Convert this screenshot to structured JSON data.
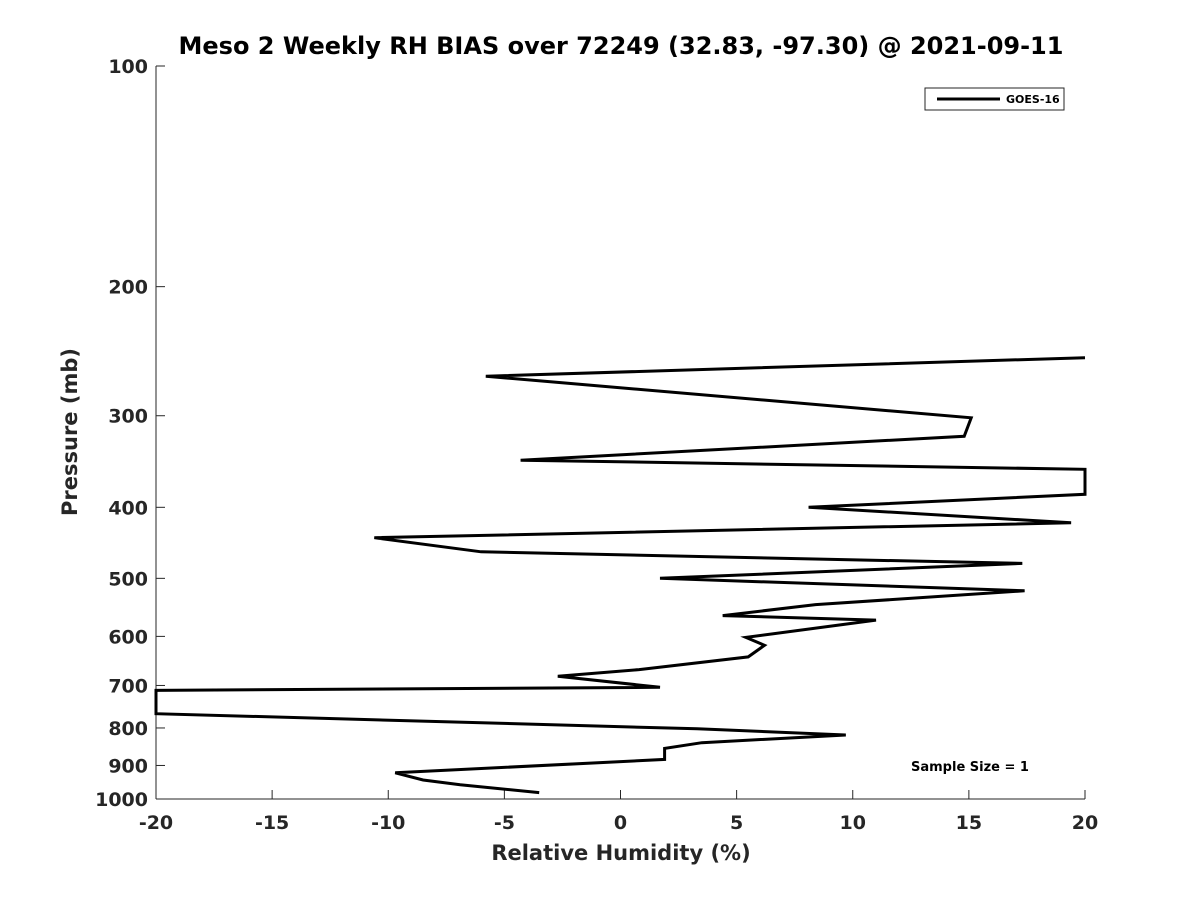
{
  "chart_data": {
    "type": "line",
    "title": "Meso 2 Weekly RH BIAS over 72249 (32.83, -97.30) @ 2021-09-11",
    "xlabel": "Relative Humidity (%)",
    "ylabel": "Pressure (mb)",
    "xlim": [
      -20,
      20
    ],
    "ylim": [
      100,
      1000
    ],
    "y_scale": "log",
    "y_reversed": true,
    "x_ticks": [
      -20,
      -15,
      -10,
      -5,
      0,
      5,
      10,
      15,
      20
    ],
    "x_tick_labels": [
      "-20",
      "-15",
      "-10",
      "-5",
      "0",
      "5",
      "10",
      "15",
      "20"
    ],
    "y_ticks": [
      100,
      200,
      300,
      400,
      500,
      600,
      700,
      800,
      900,
      1000
    ],
    "y_tick_labels": [
      "100",
      "200",
      "300",
      "400",
      "500",
      "600",
      "700",
      "800",
      "900",
      "1000"
    ],
    "grid": false,
    "legend_position": "top-right",
    "series": [
      {
        "name": "GOES-16",
        "color": "#000000",
        "points": [
          [
            20.0,
            250
          ],
          [
            -5.8,
            265
          ],
          [
            15.1,
            302
          ],
          [
            14.8,
            320
          ],
          [
            -4.3,
            345
          ],
          [
            20.0,
            355
          ],
          [
            20.0,
            384
          ],
          [
            8.1,
            400
          ],
          [
            19.4,
            420
          ],
          [
            -10.6,
            440
          ],
          [
            -6.0,
            460
          ],
          [
            17.3,
            477
          ],
          [
            1.7,
            500
          ],
          [
            17.4,
            520
          ],
          [
            8.4,
            543
          ],
          [
            4.4,
            562
          ],
          [
            11.0,
            570
          ],
          [
            5.4,
            602
          ],
          [
            6.2,
            617
          ],
          [
            5.5,
            640
          ],
          [
            0.8,
            666
          ],
          [
            -2.7,
            680
          ],
          [
            1.7,
            704
          ],
          [
            -20.0,
            711
          ],
          [
            -20.0,
            765
          ],
          [
            3.3,
            802
          ],
          [
            9.7,
            818
          ],
          [
            3.5,
            838
          ],
          [
            1.9,
            853
          ],
          [
            1.9,
            883
          ],
          [
            -9.7,
            921
          ],
          [
            -8.5,
            942
          ],
          [
            -6.9,
            956
          ],
          [
            -3.5,
            980
          ]
        ]
      }
    ],
    "annotations": [
      "Sample Size = 1"
    ]
  }
}
